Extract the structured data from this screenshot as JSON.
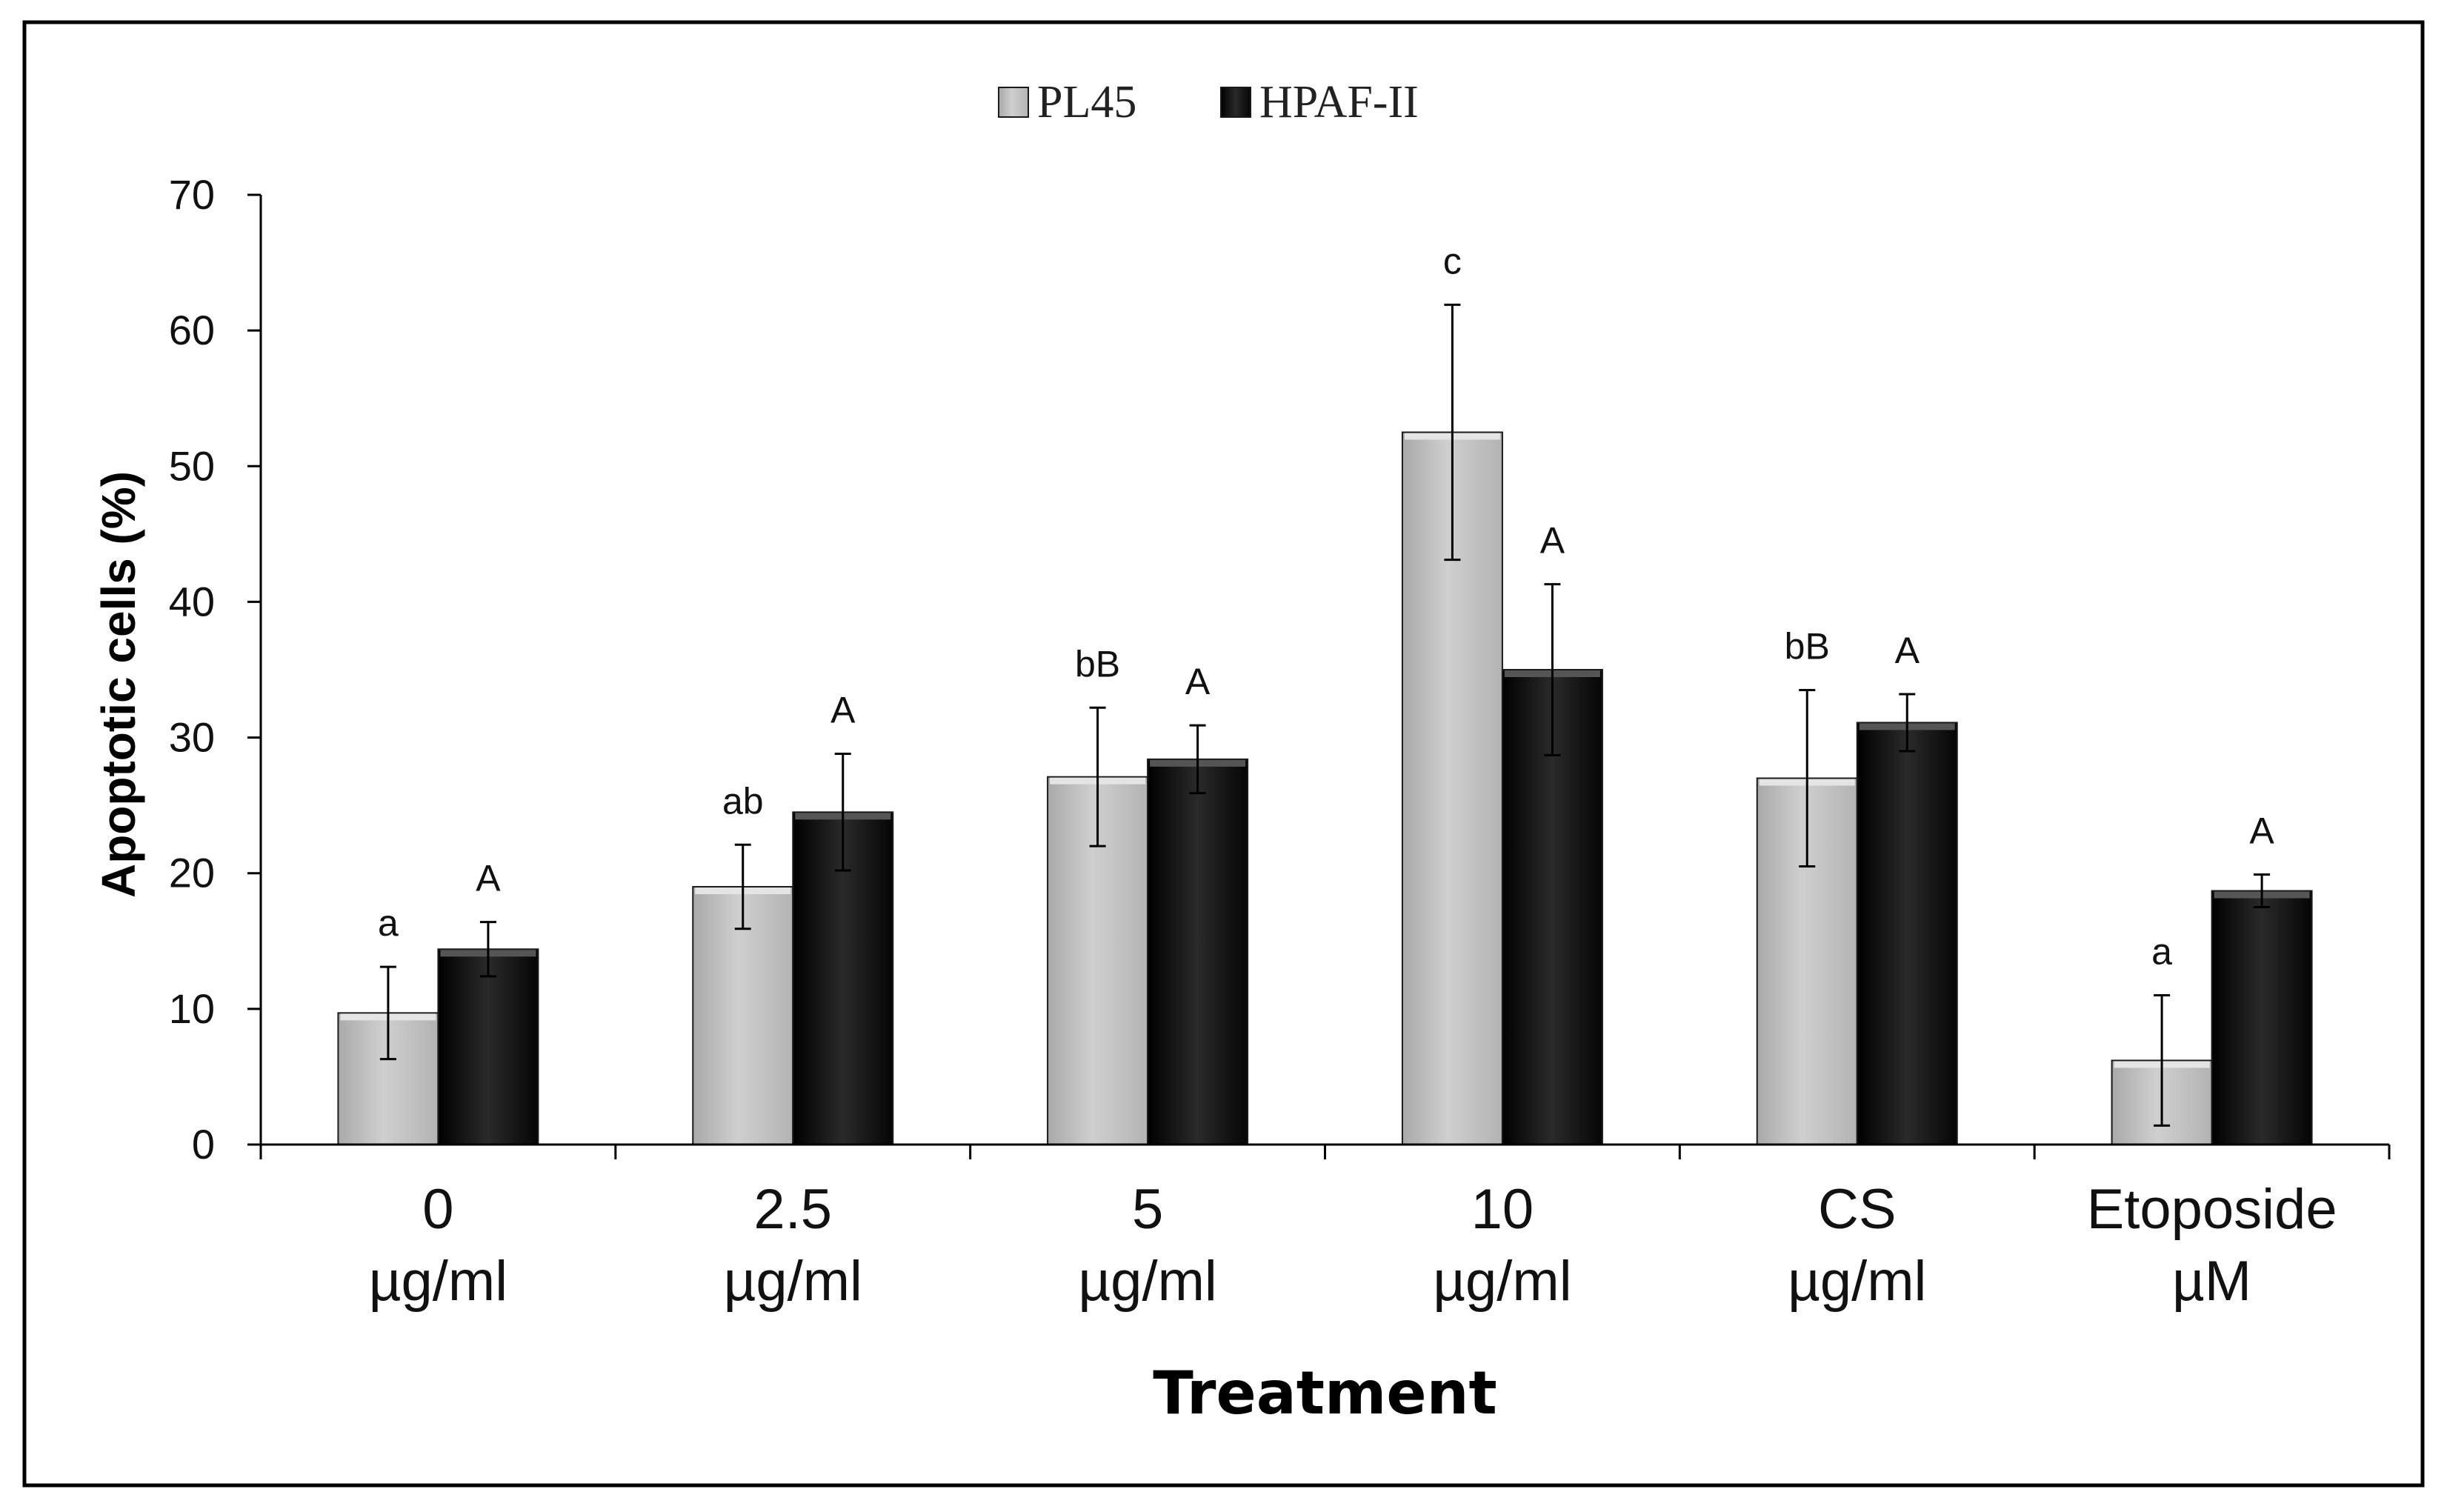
{
  "chart_data": {
    "type": "bar",
    "title": "",
    "xlabel": "Treatment",
    "ylabel": "Apoptotic cells (%)",
    "ylim": [
      0,
      70
    ],
    "yticks": [
      0,
      10,
      20,
      30,
      40,
      50,
      60,
      70
    ],
    "categories": [
      {
        "line1": "0",
        "line2": "µg/ml"
      },
      {
        "line1": "2.5",
        "line2": "µg/ml"
      },
      {
        "line1": "5",
        "line2": "µg/ml"
      },
      {
        "line1": "10",
        "line2": "µg/ml"
      },
      {
        "line1": "CS",
        "line2": "µg/ml"
      },
      {
        "line1": "Etoposide",
        "line2": "µM"
      }
    ],
    "series": [
      {
        "name": "PL45",
        "color": "#bdbdbd",
        "values": [
          9.7,
          19.0,
          27.1,
          52.5,
          27.0,
          6.2
        ],
        "errors": [
          3.4,
          3.1,
          5.1,
          9.4,
          6.5,
          4.8
        ],
        "labels": [
          "a",
          "ab",
          "bB",
          "c",
          "bB",
          "a"
        ]
      },
      {
        "name": "HPAF-II",
        "color": "#111111",
        "values": [
          14.4,
          24.5,
          28.4,
          35.0,
          31.1,
          18.7
        ],
        "errors": [
          2.0,
          4.3,
          2.5,
          6.3,
          2.1,
          1.2
        ],
        "labels": [
          "A",
          "A",
          "A",
          "A",
          "A",
          "A"
        ]
      }
    ],
    "legend": {
      "position": "top-center"
    },
    "grid": false
  }
}
